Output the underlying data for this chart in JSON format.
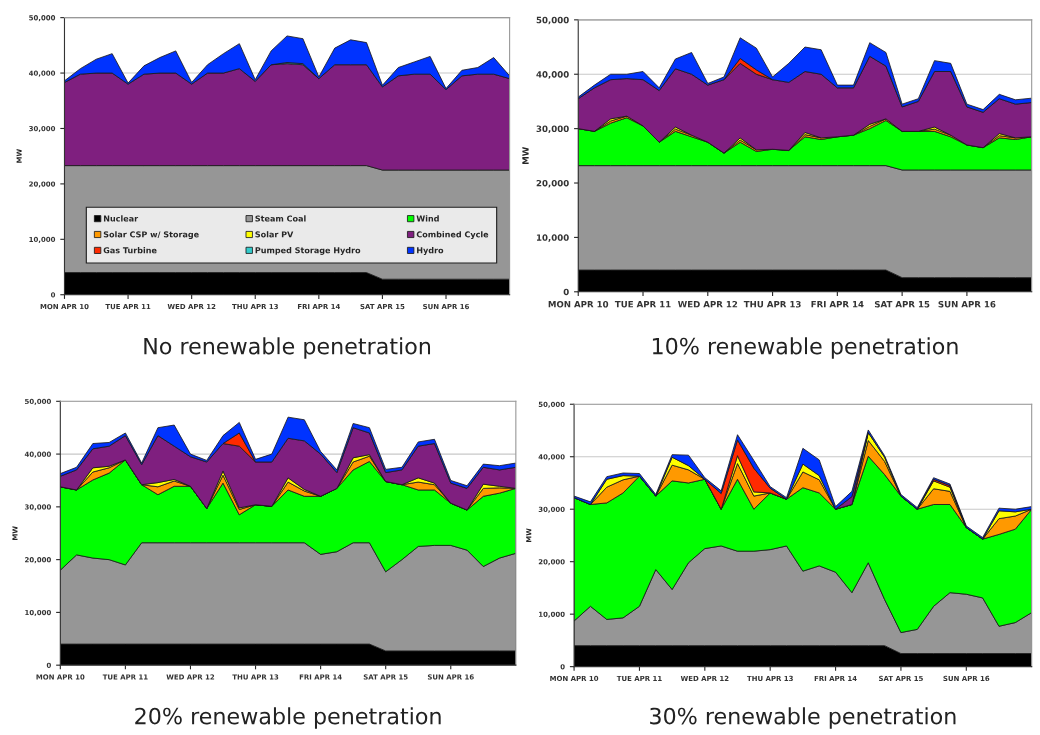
{
  "chart_data": [
    {
      "type": "area",
      "stacked": true,
      "title": "No renewable penetration",
      "ylabel": "MW",
      "grid": "y",
      "legend": "bottom",
      "categories": [
        "MON APR 10",
        null,
        null,
        null,
        "TUE APR 11",
        null,
        null,
        null,
        "WED APR 12",
        null,
        null,
        null,
        "THU APR 13",
        null,
        null,
        null,
        "FRI APR 14",
        null,
        null,
        null,
        "SAT APR 15",
        null,
        null,
        null,
        "SUN APR 16",
        null,
        null,
        null,
        null
      ],
      "ylim": [
        0,
        50000
      ],
      "yticks": [
        0,
        {
          "value": 10000,
          "label": "10,000"
        },
        {
          "value": 20000,
          "label": "20,000"
        },
        {
          "value": 30000,
          "label": "30,000"
        },
        {
          "value": 40000,
          "label": "40,000"
        },
        {
          "value": 50000,
          "label": "50,000"
        }
      ],
      "series": [
        {
          "name": "Nuclear",
          "color": "#000000",
          "values": [
            4000,
            4000,
            4000,
            4000,
            4000,
            4000,
            4000,
            4000,
            4000,
            4000,
            4000,
            4000,
            4000,
            4000,
            4000,
            4000,
            4000,
            4000,
            4000,
            4000,
            2800,
            2800,
            2800,
            2800,
            2800,
            2800,
            2800,
            2800,
            2800
          ]
        },
        {
          "name": "Steam Coal",
          "color": "#969696",
          "values": [
            19300,
            19300,
            19300,
            19300,
            19300,
            19300,
            19300,
            19300,
            19300,
            19300,
            19300,
            19300,
            19300,
            19300,
            19300,
            19300,
            19300,
            19300,
            19300,
            19300,
            19700,
            19700,
            19700,
            19700,
            19700,
            19700,
            19700,
            19700,
            19700
          ]
        },
        {
          "name": "Wind",
          "color": "#00ff00",
          "values": [
            null,
            null,
            null,
            null,
            null,
            null,
            null,
            null,
            null,
            null,
            null,
            null,
            null,
            null,
            null,
            null,
            null,
            null,
            null,
            null,
            null,
            null,
            null,
            null,
            null,
            null,
            null,
            null,
            null
          ]
        },
        {
          "name": "Solar CSP w/ Storage",
          "color": "#ff9900",
          "values": [
            null,
            null,
            null,
            null,
            null,
            null,
            null,
            null,
            null,
            null,
            null,
            null,
            null,
            null,
            null,
            null,
            null,
            null,
            null,
            null,
            null,
            null,
            null,
            null,
            null,
            null,
            null,
            null,
            null
          ]
        },
        {
          "name": "Solar PV",
          "color": "#ffff00",
          "values": [
            null,
            null,
            null,
            null,
            null,
            null,
            null,
            null,
            null,
            null,
            null,
            null,
            null,
            null,
            null,
            null,
            null,
            null,
            null,
            null,
            null,
            null,
            null,
            null,
            null,
            null,
            null,
            null,
            null
          ]
        },
        {
          "name": "Combined Cycle",
          "color": "#7f1f7f",
          "values": [
            15000,
            16500,
            16700,
            16700,
            14700,
            16500,
            16700,
            16700,
            14700,
            16700,
            16700,
            17500,
            15200,
            18200,
            18400,
            18200,
            15700,
            18200,
            18200,
            18200,
            15000,
            17000,
            17300,
            17300,
            14500,
            17000,
            17300,
            17300,
            16500
          ]
        },
        {
          "name": "Gas Turbine",
          "color": "#ff2a00",
          "values": [
            null,
            null,
            null,
            null,
            null,
            null,
            null,
            null,
            null,
            null,
            null,
            null,
            null,
            null,
            null,
            null,
            null,
            null,
            null,
            null,
            null,
            null,
            null,
            null,
            null,
            null,
            null,
            null,
            null
          ]
        },
        {
          "name": "Pumped Storage Hydro",
          "color": "#33cccc",
          "values": [
            null,
            null,
            null,
            null,
            null,
            null,
            null,
            null,
            null,
            null,
            null,
            null,
            null,
            0,
            200,
            200,
            0,
            null,
            null,
            null,
            null,
            null,
            null,
            null,
            null,
            null,
            null,
            null,
            null
          ]
        },
        {
          "name": "Hydro",
          "color": "#0033ff",
          "values": [
            300,
            1000,
            2500,
            3500,
            200,
            1500,
            2800,
            4000,
            300,
            1500,
            3500,
            4500,
            300,
            2500,
            4800,
            4500,
            300,
            3000,
            4500,
            4000,
            300,
            1500,
            2200,
            3200,
            200,
            1000,
            1200,
            3000,
            500
          ]
        }
      ]
    },
    {
      "type": "area",
      "stacked": true,
      "title": "10% renewable penetration",
      "ylabel": "MW",
      "grid": "y",
      "categories": [
        "MON APR 10",
        null,
        null,
        null,
        "TUE APR 11",
        null,
        null,
        null,
        "WED APR 12",
        null,
        null,
        null,
        "THU APR 13",
        null,
        null,
        null,
        "FRI APR 14",
        null,
        null,
        null,
        "SAT APR 15",
        null,
        null,
        null,
        "SUN APR 16",
        null,
        null,
        null,
        null
      ],
      "ylim": [
        0,
        50000
      ],
      "yticks": [
        0,
        {
          "value": 10000,
          "label": "10,000"
        },
        {
          "value": 20000,
          "label": "20,000"
        },
        {
          "value": 30000,
          "label": "30,000"
        },
        {
          "value": 40000,
          "label": "40,000"
        },
        {
          "value": 50000,
          "label": "50,000"
        }
      ],
      "series": [
        {
          "color": "#000000",
          "values": [
            4000,
            4000,
            4000,
            4000,
            4000,
            4000,
            4000,
            4000,
            4000,
            4000,
            4000,
            4000,
            4000,
            4000,
            4000,
            4000,
            4000,
            4000,
            4000,
            4000,
            2600,
            2600,
            2600,
            2600,
            2600,
            2600,
            2600,
            2600,
            2600
          ]
        },
        {
          "color": "#969696",
          "values": [
            19200,
            19200,
            19200,
            19200,
            19200,
            19200,
            19200,
            19200,
            19200,
            19200,
            19200,
            19200,
            19200,
            19200,
            19200,
            19200,
            19200,
            19200,
            19200,
            19200,
            19800,
            19800,
            19800,
            19800,
            19800,
            19800,
            19800,
            19800,
            19800
          ]
        },
        {
          "color": "#00ff00",
          "values": [
            6800,
            6300,
            7800,
            8800,
            7300,
            4300,
            6300,
            5300,
            4300,
            2300,
            4300,
            2600,
            3000,
            2800,
            5300,
            4800,
            5300,
            5600,
            6800,
            8300,
            7100,
            7100,
            7100,
            6100,
            4600,
            4100,
            5900,
            5600,
            6100
          ]
        },
        {
          "color": "#ff9900",
          "values": [
            0,
            0,
            400,
            300,
            0,
            0,
            400,
            300,
            0,
            0,
            400,
            300,
            0,
            0,
            400,
            300,
            0,
            0,
            400,
            300,
            0,
            0,
            400,
            300,
            0,
            0,
            400,
            300,
            0
          ]
        },
        {
          "color": "#ffff00",
          "values": [
            null,
            0,
            400,
            0,
            null,
            0,
            400,
            0,
            null,
            0,
            400,
            0,
            null,
            0,
            400,
            0,
            null,
            0,
            400,
            0,
            null,
            0,
            400,
            0,
            null,
            0,
            400,
            0,
            null
          ]
        },
        {
          "color": "#7f1f7f",
          "values": [
            5500,
            8000,
            7200,
            6900,
            8500,
            9500,
            10700,
            11200,
            10500,
            13500,
            13700,
            13900,
            12800,
            12500,
            11200,
            11700,
            9000,
            8700,
            12500,
            9700,
            4500,
            5500,
            10200,
            11700,
            7000,
            6500,
            6400,
            6200,
            6300
          ]
        },
        {
          "color": "#ff2a00",
          "values": [
            null,
            null,
            null,
            null,
            null,
            null,
            null,
            null,
            null,
            0,
            900,
            800,
            0,
            null,
            null,
            null,
            null,
            null,
            null,
            null,
            null,
            null,
            null,
            null,
            null,
            null,
            null,
            null,
            null
          ]
        },
        {
          "color": "#0033ff",
          "values": [
            300,
            500,
            1000,
            800,
            1500,
            500,
            1800,
            4000,
            300,
            500,
            3800,
            4000,
            500,
            3500,
            4500,
            4500,
            500,
            500,
            2500,
            2500,
            500,
            500,
            2000,
            1500,
            500,
            500,
            800,
            800,
            800
          ]
        }
      ]
    },
    {
      "type": "area",
      "stacked": true,
      "title": "20% renewable penetration",
      "ylabel": "MW",
      "grid": "y",
      "categories": [
        "MON APR 10",
        null,
        null,
        null,
        "TUE APR 11",
        null,
        null,
        null,
        "WED APR 12",
        null,
        null,
        null,
        "THU APR 13",
        null,
        null,
        null,
        "FRI APR 14",
        null,
        null,
        null,
        "SAT APR 15",
        null,
        null,
        null,
        "SUN APR 16",
        null,
        null,
        null,
        null
      ],
      "ylim": [
        0,
        50000
      ],
      "yticks": [
        0,
        {
          "value": 10000,
          "label": "10,000"
        },
        {
          "value": 20000,
          "label": "20,000"
        },
        {
          "value": 30000,
          "label": "30,000"
        },
        {
          "value": 40000,
          "label": "40,000"
        },
        {
          "value": 50000,
          "label": "50,000"
        }
      ],
      "series": [
        {
          "color": "#000000",
          "values": [
            4000,
            4000,
            4000,
            4000,
            4000,
            4000,
            4000,
            4000,
            4000,
            4000,
            4000,
            4000,
            4000,
            4000,
            4000,
            4000,
            4000,
            4000,
            4000,
            4000,
            2700,
            2700,
            2700,
            2700,
            2700,
            2700,
            2700,
            2700,
            2700
          ]
        },
        {
          "color": "#969696",
          "values": [
            14000,
            16900,
            16300,
            16000,
            15000,
            19200,
            19200,
            19200,
            19200,
            19200,
            19200,
            19200,
            19200,
            19200,
            19200,
            19200,
            17000,
            17500,
            19200,
            19200,
            15000,
            17300,
            19800,
            20000,
            20000,
            19100,
            16000,
            17600,
            18500
          ]
        },
        {
          "color": "#00ff00",
          "values": [
            15800,
            12300,
            14800,
            16400,
            19900,
            11000,
            9100,
            10700,
            10700,
            6500,
            11300,
            5300,
            7200,
            6900,
            10000,
            8800,
            11000,
            12000,
            13800,
            15400,
            17100,
            14200,
            10700,
            10500,
            8000,
            7600,
            13300,
            12300,
            12300
          ]
        },
        {
          "color": "#ff9900",
          "values": [
            0,
            0,
            1500,
            1000,
            0,
            0,
            1500,
            1000,
            0,
            0,
            1500,
            1000,
            0,
            0,
            1500,
            1000,
            0,
            0,
            1500,
            1000,
            0,
            0,
            1500,
            1000,
            0,
            0,
            1500,
            1000,
            0
          ]
        },
        {
          "color": "#ffff00",
          "values": [
            0,
            0,
            800,
            300,
            0,
            0,
            800,
            300,
            0,
            0,
            800,
            300,
            0,
            0,
            800,
            300,
            0,
            0,
            800,
            300,
            0,
            0,
            800,
            300,
            0,
            0,
            800,
            300,
            0
          ]
        },
        {
          "color": "#7f1f7f",
          "values": [
            2000,
            3800,
            3600,
            3800,
            4600,
            3800,
            8900,
            6300,
            5600,
            8800,
            5200,
            11700,
            8100,
            8400,
            7500,
            9200,
            8000,
            3000,
            5700,
            4100,
            1700,
            2800,
            6000,
            7500,
            3800,
            4100,
            3200,
            3100,
            4000
          ]
        },
        {
          "color": "#ff2a00",
          "values": [
            null,
            null,
            null,
            null,
            null,
            null,
            null,
            null,
            null,
            null,
            0,
            2500,
            0,
            null,
            null,
            null,
            null,
            null,
            null,
            null,
            null,
            null,
            null,
            null,
            null,
            null,
            null,
            null,
            null
          ]
        },
        {
          "color": "#0033ff",
          "values": [
            500,
            500,
            1000,
            700,
            500,
            300,
            1500,
            4000,
            500,
            300,
            1500,
            2000,
            500,
            1500,
            4000,
            4000,
            500,
            500,
            800,
            1000,
            600,
            500,
            800,
            800,
            500,
            500,
            600,
            800,
            800
          ]
        }
      ]
    },
    {
      "type": "area",
      "stacked": true,
      "title": "30% renewable penetration",
      "ylabel": "MW",
      "grid": "y",
      "categories": [
        "MON APR 10",
        null,
        null,
        null,
        "TUE APR 11",
        null,
        null,
        null,
        "WED APR 12",
        null,
        null,
        null,
        "THU APR 13",
        null,
        null,
        null,
        "FRI APR 14",
        null,
        null,
        null,
        "SAT APR 15",
        null,
        null,
        null,
        "SUN APR 16",
        null,
        null,
        null,
        null
      ],
      "ylim": [
        0,
        50000
      ],
      "yticks": [
        0,
        {
          "value": 10000,
          "label": "10,000"
        },
        {
          "value": 20000,
          "label": "20,000"
        },
        {
          "value": 30000,
          "label": "30,000"
        },
        {
          "value": 40000,
          "label": "40,000"
        },
        {
          "value": 50000,
          "label": "50,000"
        }
      ],
      "series": [
        {
          "color": "#000000",
          "values": [
            4000,
            4000,
            4000,
            4000,
            4000,
            4000,
            4000,
            4000,
            4000,
            4000,
            4000,
            4000,
            4000,
            4000,
            4000,
            4000,
            4000,
            4000,
            4000,
            4000,
            2500,
            2500,
            2500,
            2500,
            2500,
            2500,
            2500,
            2500,
            2500
          ]
        },
        {
          "color": "#969696",
          "values": [
            4700,
            7500,
            5000,
            5300,
            7500,
            14500,
            10700,
            15800,
            18500,
            19000,
            18000,
            18000,
            18300,
            19000,
            14200,
            15200,
            14000,
            10100,
            15800,
            8800,
            4000,
            4600,
            9000,
            11600,
            11300,
            10600,
            5200,
            5900,
            7800
          ]
        },
        {
          "color": "#00ff00",
          "values": [
            23500,
            19400,
            22200,
            23800,
            24800,
            14000,
            20700,
            15200,
            13200,
            7000,
            13700,
            8000,
            10800,
            8900,
            15900,
            13900,
            12000,
            16800,
            20300,
            23800,
            26000,
            22900,
            19400,
            16800,
            12700,
            11200,
            17500,
            17800,
            19700
          ]
        },
        {
          "color": "#ff9900",
          "values": [
            0,
            0,
            3000,
            2500,
            0,
            0,
            3000,
            2500,
            0,
            0,
            3000,
            2500,
            0,
            0,
            3000,
            2500,
            0,
            0,
            3000,
            2500,
            0,
            0,
            3000,
            2500,
            0,
            0,
            3000,
            2500,
            0
          ]
        },
        {
          "color": "#ffff00",
          "values": [
            0,
            0,
            1500,
            800,
            0,
            0,
            1500,
            800,
            0,
            0,
            1500,
            800,
            0,
            0,
            1500,
            800,
            0,
            0,
            1500,
            800,
            0,
            0,
            1500,
            800,
            0,
            0,
            1500,
            800,
            0
          ]
        },
        {
          "color": "#7f1f7f",
          "values": [
            null,
            null,
            null,
            null,
            null,
            null,
            null,
            null,
            null,
            null,
            null,
            null,
            null,
            null,
            null,
            null,
            0,
            1500,
            0,
            null,
            null,
            null,
            null,
            null,
            null,
            null,
            null,
            null,
            null
          ]
        },
        {
          "color": "#ff2a00",
          "values": [
            null,
            null,
            null,
            null,
            null,
            null,
            null,
            null,
            0,
            3000,
            3000,
            4500,
            900,
            0,
            null,
            null,
            null,
            null,
            null,
            null,
            null,
            0,
            300,
            300,
            0,
            null,
            null,
            null,
            null
          ]
        },
        {
          "color": "#0033ff",
          "values": [
            300,
            500,
            500,
            500,
            500,
            300,
            500,
            2000,
            300,
            500,
            1000,
            1500,
            300,
            300,
            3000,
            3000,
            500,
            1000,
            500,
            300,
            300,
            300,
            300,
            300,
            300,
            300,
            500,
            500,
            500
          ]
        }
      ]
    }
  ]
}
